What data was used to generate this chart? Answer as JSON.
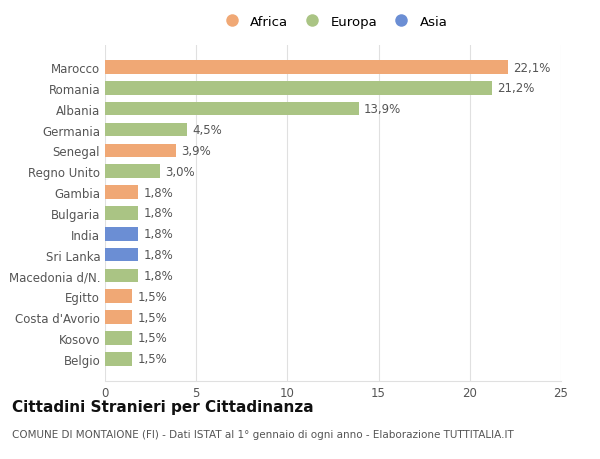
{
  "categories": [
    "Belgio",
    "Kosovo",
    "Costa d'Avorio",
    "Egitto",
    "Macedonia d/N.",
    "Sri Lanka",
    "India",
    "Bulgaria",
    "Gambia",
    "Regno Unito",
    "Senegal",
    "Germania",
    "Albania",
    "Romania",
    "Marocco"
  ],
  "values": [
    1.5,
    1.5,
    1.5,
    1.5,
    1.8,
    1.8,
    1.8,
    1.8,
    1.8,
    3.0,
    3.9,
    4.5,
    13.9,
    21.2,
    22.1
  ],
  "labels": [
    "1,5%",
    "1,5%",
    "1,5%",
    "1,5%",
    "1,8%",
    "1,8%",
    "1,8%",
    "1,8%",
    "1,8%",
    "3,0%",
    "3,9%",
    "4,5%",
    "13,9%",
    "21,2%",
    "22,1%"
  ],
  "colors": [
    "#aac484",
    "#aac484",
    "#f0a875",
    "#f0a875",
    "#aac484",
    "#6b8ed4",
    "#6b8ed4",
    "#aac484",
    "#f0a875",
    "#aac484",
    "#f0a875",
    "#aac484",
    "#aac484",
    "#aac484",
    "#f0a875"
  ],
  "legend_labels": [
    "Africa",
    "Europa",
    "Asia"
  ],
  "legend_colors": [
    "#f0a875",
    "#aac484",
    "#6b8ed4"
  ],
  "title": "Cittadini Stranieri per Cittadinanza",
  "subtitle": "COMUNE DI MONTAIONE (FI) - Dati ISTAT al 1° gennaio di ogni anno - Elaborazione TUTTITALIA.IT",
  "xlim": [
    0,
    25
  ],
  "xticks": [
    0,
    5,
    10,
    15,
    20,
    25
  ],
  "bg_color": "#ffffff",
  "grid_color": "#e0e0e0",
  "bar_height": 0.65,
  "label_fontsize": 8.5,
  "tick_fontsize": 8.5,
  "title_fontsize": 11,
  "subtitle_fontsize": 7.5
}
